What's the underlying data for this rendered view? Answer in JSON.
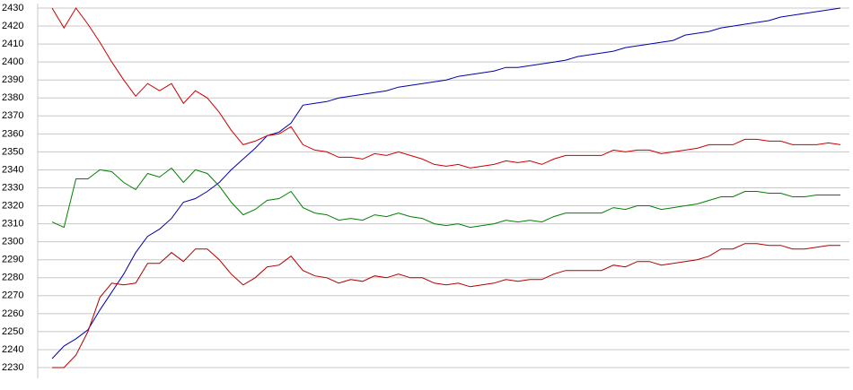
{
  "chart_data": {
    "type": "line",
    "ylim": [
      2230,
      2430
    ],
    "yticks": [
      2230,
      2240,
      2250,
      2260,
      2270,
      2280,
      2290,
      2300,
      2310,
      2320,
      2330,
      2340,
      2350,
      2360,
      2370,
      2380,
      2390,
      2400,
      2410,
      2420,
      2430
    ],
    "grid": true,
    "series": [
      {
        "color": "#0000aa",
        "values": [
          2235,
          2242,
          2246,
          2251,
          2262,
          2272,
          2282,
          2294,
          2303,
          2307,
          2313,
          2322,
          2324,
          2328,
          2333,
          2340,
          2346,
          2352,
          2359,
          2361,
          2366,
          2376,
          2377,
          2378,
          2380,
          2381,
          2382,
          2383,
          2384,
          2386,
          2387,
          2388,
          2389,
          2390,
          2392,
          2393,
          2394,
          2395,
          2397,
          2397,
          2398,
          2399,
          2400,
          2401,
          2403,
          2404,
          2405,
          2406,
          2408,
          2409,
          2410,
          2411,
          2412,
          2415,
          2416,
          2417,
          2419,
          2420,
          2421,
          2422,
          2423,
          2425,
          2426,
          2427,
          2428,
          2429,
          2430
        ]
      },
      {
        "color": "#cc0000",
        "values": [
          2430,
          2419,
          2430,
          2421,
          2411,
          2400,
          2390,
          2381,
          2388,
          2384,
          2388,
          2377,
          2384,
          2380,
          2372,
          2362,
          2354,
          2356,
          2359,
          2360,
          2364,
          2354,
          2351,
          2350,
          2347,
          2347,
          2346,
          2349,
          2348,
          2350,
          2348,
          2346,
          2343,
          2342,
          2343,
          2341,
          2342,
          2343,
          2345,
          2344,
          2345,
          2343,
          2346,
          2348,
          2348,
          2348,
          2348,
          2351,
          2350,
          2351,
          2351,
          2349,
          2350,
          2351,
          2352,
          2354,
          2354,
          2354,
          2357,
          2357,
          2356,
          2356,
          2354,
          2354,
          2354,
          2355,
          2354
        ]
      },
      {
        "color": "#008000",
        "values": [
          2311,
          2308,
          2335,
          2335,
          2340,
          2339,
          2333,
          2329,
          2338,
          2336,
          2341,
          2333,
          2340,
          2338,
          2331,
          2322,
          2315,
          2318,
          2323,
          2324,
          2328,
          2319,
          2316,
          2315,
          2312,
          2313,
          2312,
          2315,
          2314,
          2316,
          2314,
          2313,
          2310,
          2309,
          2310,
          2308,
          2309,
          2310,
          2312,
          2311,
          2312,
          2311,
          2314,
          2316,
          2316,
          2316,
          2316,
          2319,
          2318,
          2320,
          2320,
          2318,
          2319,
          2320,
          2321,
          2323,
          2325,
          2325,
          2328,
          2328,
          2327,
          2327,
          2325,
          2325,
          2326,
          2326,
          2326
        ]
      },
      {
        "color": "#b00000",
        "values": [
          2230,
          2230,
          2237,
          2250,
          2269,
          2277,
          2276,
          2277,
          2288,
          2288,
          2294,
          2289,
          2296,
          2296,
          2290,
          2282,
          2276,
          2280,
          2286,
          2287,
          2292,
          2284,
          2281,
          2280,
          2277,
          2279,
          2278,
          2281,
          2280,
          2282,
          2280,
          2280,
          2277,
          2276,
          2277,
          2275,
          2276,
          2277,
          2279,
          2278,
          2279,
          2279,
          2282,
          2284,
          2284,
          2284,
          2284,
          2287,
          2286,
          2289,
          2289,
          2287,
          2288,
          2289,
          2290,
          2292,
          2296,
          2296,
          2299,
          2299,
          2298,
          2298,
          2296,
          2296,
          2297,
          2298,
          2298
        ]
      }
    ]
  }
}
